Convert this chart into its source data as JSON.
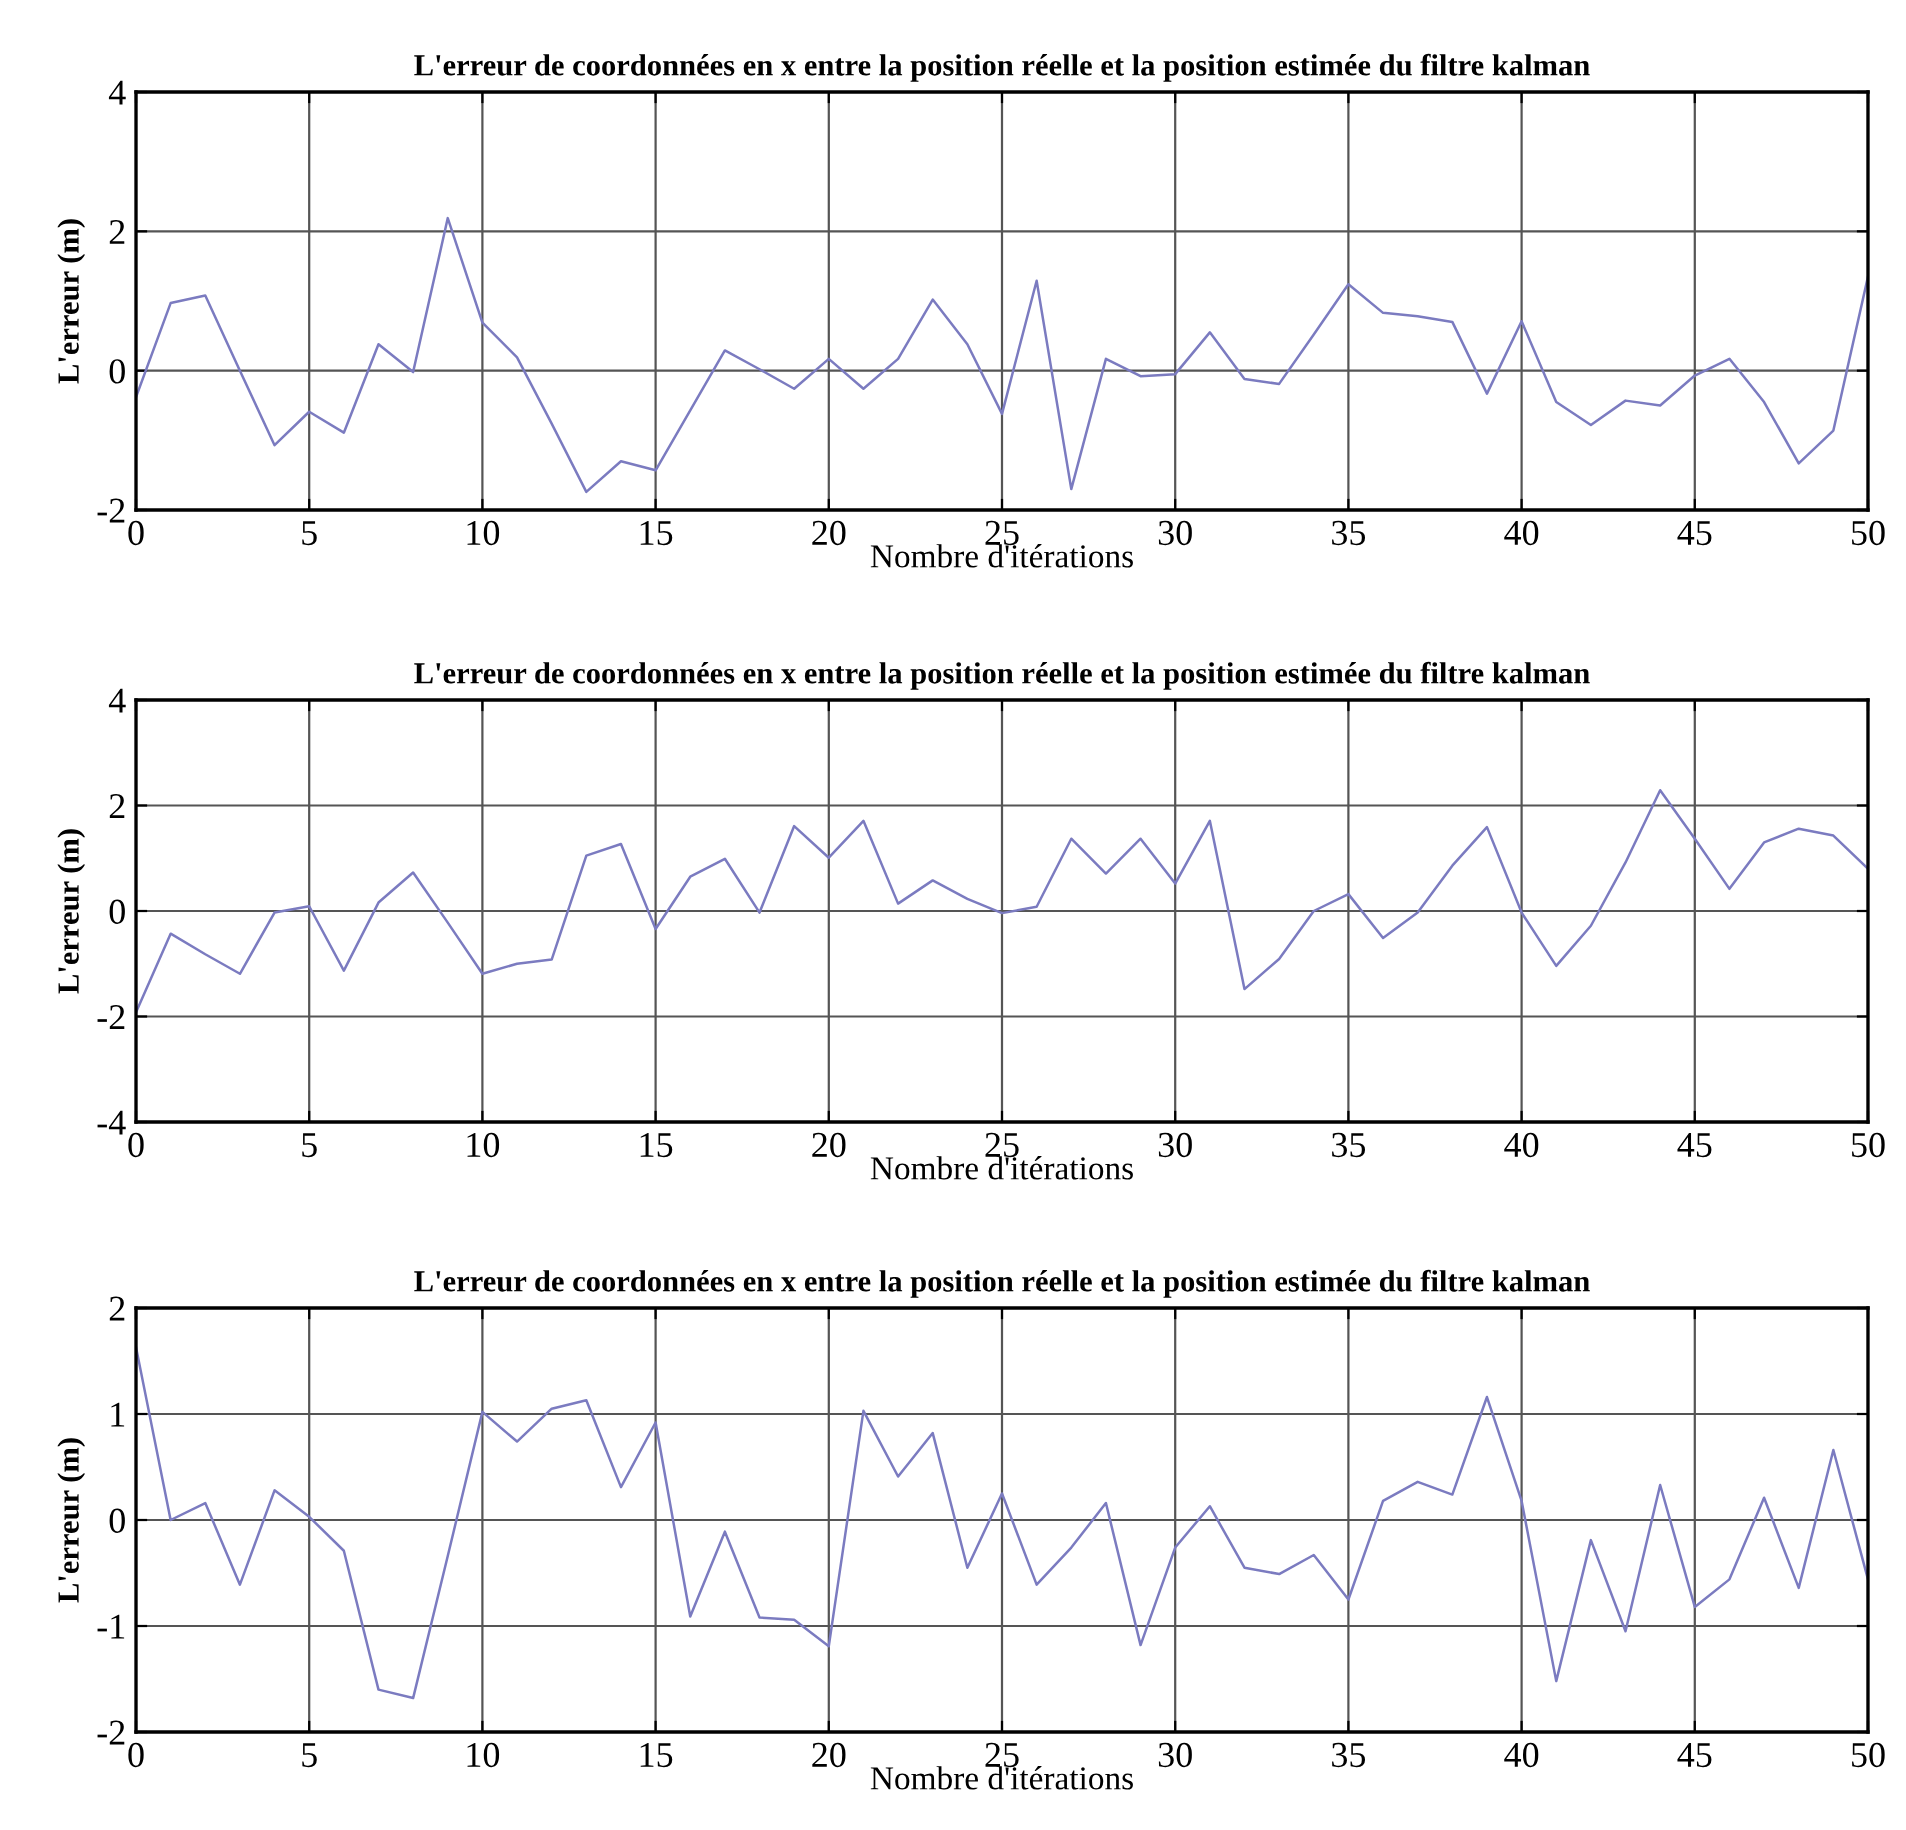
{
  "chart_data": [
    {
      "type": "line",
      "title": "L'erreur de coordonnées en x entre la position réelle et la position estimée du filtre kalman",
      "xlabel": "Nombre d'itérations",
      "ylabel": "L'erreur (m)",
      "xlim": [
        0,
        50
      ],
      "xticks": [
        0,
        5,
        10,
        15,
        20,
        25,
        30,
        35,
        40,
        45,
        50
      ],
      "ylim": [
        -2,
        4
      ],
      "yticks": [
        -2,
        0,
        2,
        4
      ],
      "grid": true,
      "marker": "none",
      "line_style": "solid",
      "x": [
        0,
        1,
        2,
        3,
        4,
        5,
        6,
        7,
        8,
        9,
        10,
        11,
        12,
        13,
        14,
        15,
        16,
        17,
        18,
        19,
        20,
        21,
        22,
        23,
        24,
        25,
        26,
        27,
        28,
        29,
        30,
        31,
        32,
        33,
        34,
        35,
        36,
        37,
        38,
        39,
        40,
        41,
        42,
        43,
        44,
        45,
        46,
        47,
        48,
        49,
        50
      ],
      "series": [
        {
          "color": "#7b7bc0",
          "values": [
            -0.38,
            0.97,
            1.08,
            0,
            -1.07,
            -0.59,
            -0.89,
            0.38,
            -0.02,
            2.19,
            0.69,
            0.19,
            -0.76,
            -1.74,
            -1.3,
            -1.43,
            -0.57,
            0.29,
            0.02,
            -0.26,
            0.17,
            -0.26,
            0.17,
            1.02,
            0.38,
            -0.62,
            1.29,
            -1.7,
            0.17,
            -0.08,
            -0.05,
            0.55,
            -0.12,
            -0.19,
            0.52,
            1.24,
            0.83,
            0.78,
            0.7,
            -0.33,
            0.71,
            -0.45,
            -0.78,
            -0.43,
            -0.5,
            -0.07,
            0.17,
            -0.45,
            -1.33,
            -0.86,
            1.35
          ]
        }
      ]
    },
    {
      "type": "line",
      "title": "L'erreur de coordonnées en x entre la position réelle et la position estimée du filtre kalman",
      "xlabel": "Nombre d'itérations",
      "ylabel": "L'erreur (m)",
      "xlim": [
        0,
        50
      ],
      "xticks": [
        0,
        5,
        10,
        15,
        20,
        25,
        30,
        35,
        40,
        45,
        50
      ],
      "ylim": [
        -4,
        4
      ],
      "yticks": [
        -4,
        -2,
        0,
        2,
        4
      ],
      "grid": true,
      "marker": "none",
      "line_style": "solid",
      "x": [
        0,
        1,
        2,
        3,
        4,
        5,
        6,
        7,
        8,
        9,
        10,
        11,
        12,
        13,
        14,
        15,
        16,
        17,
        18,
        19,
        20,
        21,
        22,
        23,
        24,
        25,
        26,
        27,
        28,
        29,
        30,
        31,
        32,
        33,
        34,
        35,
        36,
        37,
        38,
        39,
        40,
        41,
        42,
        43,
        44,
        45,
        46,
        47,
        48,
        49,
        50
      ],
      "series": [
        {
          "color": "#7b7bc0",
          "values": [
            -1.92,
            -0.43,
            -0.82,
            -1.19,
            -0.03,
            0.09,
            -1.13,
            0.16,
            0.73,
            -0.22,
            -1.19,
            -1.0,
            -0.92,
            1.05,
            1.27,
            -0.34,
            0.65,
            0.99,
            -0.03,
            1.61,
            1.01,
            1.71,
            0.14,
            0.58,
            0.23,
            -0.04,
            0.08,
            1.37,
            0.71,
            1.37,
            0.52,
            1.71,
            -1.48,
            -0.91,
            0,
            0.32,
            -0.51,
            -0.03,
            0.86,
            1.59,
            -0.03,
            -1.04,
            -0.28,
            0.92,
            2.29,
            1.37,
            0.42,
            1.3,
            1.56,
            1.43,
            0.8
          ]
        }
      ]
    },
    {
      "type": "line",
      "title": "L'erreur de coordonnées en x entre la position réelle et la position estimée du filtre kalman",
      "xlabel": "Nombre d'itérations",
      "ylabel": "L'erreur (m)",
      "xlim": [
        0,
        50
      ],
      "xticks": [
        0,
        5,
        10,
        15,
        20,
        25,
        30,
        35,
        40,
        45,
        50
      ],
      "ylim": [
        -2,
        2
      ],
      "yticks": [
        -2,
        -1,
        0,
        1,
        2
      ],
      "grid": true,
      "marker": "none",
      "line_style": "solid",
      "x": [
        0,
        1,
        2,
        3,
        4,
        5,
        6,
        7,
        8,
        9,
        10,
        11,
        12,
        13,
        14,
        15,
        16,
        17,
        18,
        19,
        20,
        21,
        22,
        23,
        24,
        25,
        26,
        27,
        28,
        29,
        30,
        31,
        32,
        33,
        34,
        35,
        36,
        37,
        38,
        39,
        40,
        41,
        42,
        43,
        44,
        45,
        46,
        47,
        48,
        49,
        50
      ],
      "series": [
        {
          "color": "#7b7bc0",
          "values": [
            1.63,
            0,
            0.16,
            -0.61,
            0.28,
            0.03,
            -0.29,
            -1.6,
            -1.68,
            -0.34,
            1.02,
            0.74,
            1.05,
            1.13,
            0.31,
            0.92,
            -0.91,
            -0.11,
            -0.92,
            -0.94,
            -1.19,
            1.03,
            0.41,
            0.82,
            -0.45,
            0.25,
            -0.61,
            -0.26,
            0.16,
            -1.18,
            -0.26,
            0.13,
            -0.45,
            -0.51,
            -0.33,
            -0.75,
            0.18,
            0.36,
            0.24,
            1.16,
            0.18,
            -1.52,
            -0.19,
            -1.05,
            0.33,
            -0.82,
            -0.56,
            0.21,
            -0.64,
            0.66,
            -0.56
          ]
        }
      ]
    }
  ]
}
